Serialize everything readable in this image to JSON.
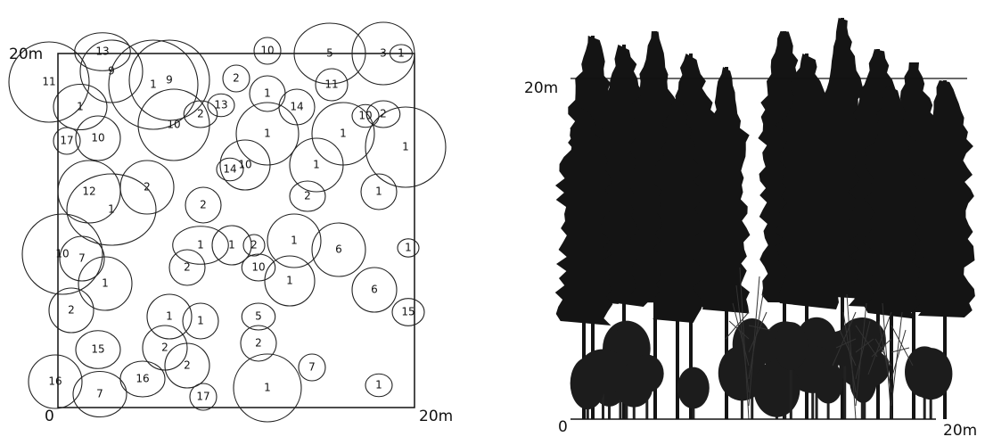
{
  "crown_map": {
    "axis_labels": {
      "top": "20m",
      "origin": "0",
      "right": "20m"
    },
    "crown_labels": [
      "13",
      "1",
      "9",
      "2",
      "10",
      "5",
      "3",
      "1",
      "11",
      "9",
      "1",
      "17",
      "10",
      "10",
      "2",
      "13",
      "1",
      "14",
      "11",
      "1",
      "10",
      "2",
      "1",
      "1",
      "10",
      "14",
      "2",
      "12",
      "1",
      "1",
      "2",
      "2",
      "10",
      "7",
      "1",
      "1",
      "1",
      "2",
      "1",
      "6",
      "1",
      "2",
      "10",
      "1",
      "6",
      "15",
      "2",
      "1",
      "1",
      "5",
      "15",
      "2",
      "2",
      "7",
      "16",
      "7",
      "16",
      "2",
      "17",
      "1",
      "1",
      "1"
    ]
  },
  "profile": {
    "axis_labels": {
      "top": "20m",
      "origin": "0",
      "right": "20m"
    }
  }
}
